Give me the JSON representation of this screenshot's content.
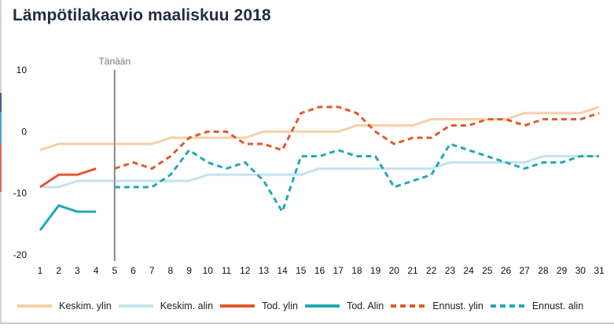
{
  "page": {
    "title": "Lämpötilakaavio maaliskuu 2018",
    "side_strip_colors": [
      "#4a5d85",
      "#4fa3d1",
      "#d9675f"
    ]
  },
  "chart_data": {
    "type": "line",
    "title": "Lämpötilakaavio maaliskuu 2018",
    "xlabel": "",
    "ylabel": "",
    "x": [
      1,
      2,
      3,
      4,
      5,
      6,
      7,
      8,
      9,
      10,
      11,
      12,
      13,
      14,
      15,
      16,
      17,
      18,
      19,
      20,
      21,
      22,
      23,
      24,
      25,
      26,
      27,
      28,
      29,
      30,
      31
    ],
    "x_ticks": [
      "1",
      "2",
      "3",
      "4",
      "5",
      "6",
      "7",
      "8",
      "9",
      "10",
      "11",
      "12",
      "13",
      "14",
      "15",
      "16",
      "17",
      "18",
      "19",
      "20",
      "21",
      "22",
      "23",
      "24",
      "25",
      "26",
      "27",
      "28",
      "29",
      "30",
      "31"
    ],
    "y_ticks": [
      "10",
      "0",
      "-10",
      "-20"
    ],
    "y_tick_values": [
      10,
      0,
      -10,
      -20
    ],
    "ylim": [
      -20,
      10
    ],
    "xlim": [
      1,
      31
    ],
    "grid": false,
    "legend_position": "bottom",
    "annotation": {
      "label": "Tänään",
      "x": 5
    },
    "series": [
      {
        "name": "Keskim. ylin",
        "color": "#f8cfa6",
        "style": "solid",
        "x": [
          1,
          2,
          3,
          4,
          5,
          6,
          7,
          8,
          9,
          10,
          11,
          12,
          13,
          14,
          15,
          16,
          17,
          18,
          19,
          20,
          21,
          22,
          23,
          24,
          25,
          26,
          27,
          28,
          29,
          30,
          31
        ],
        "values": [
          -3,
          -2,
          -2,
          -2,
          -2,
          -2,
          -2,
          -1,
          -1,
          -1,
          -1,
          -1,
          0,
          0,
          0,
          0,
          0,
          1,
          1,
          1,
          1,
          2,
          2,
          2,
          2,
          2,
          3,
          3,
          3,
          3,
          4
        ]
      },
      {
        "name": "Keskim. alin",
        "color": "#c3e3ec",
        "style": "solid",
        "x": [
          1,
          2,
          3,
          4,
          5,
          6,
          7,
          8,
          9,
          10,
          11,
          12,
          13,
          14,
          15,
          16,
          17,
          18,
          19,
          20,
          21,
          22,
          23,
          24,
          25,
          26,
          27,
          28,
          29,
          30,
          31
        ],
        "values": [
          -9,
          -9,
          -8,
          -8,
          -8,
          -8,
          -8,
          -8,
          -8,
          -7,
          -7,
          -7,
          -7,
          -7,
          -7,
          -6,
          -6,
          -6,
          -6,
          -6,
          -6,
          -6,
          -5,
          -5,
          -5,
          -5,
          -5,
          -4,
          -4,
          -4,
          -4
        ]
      },
      {
        "name": "Tod. ylin",
        "color": "#e05a2b",
        "style": "solid",
        "x": [
          1,
          2,
          3,
          4
        ],
        "values": [
          -9,
          -7,
          -7,
          -6
        ]
      },
      {
        "name": "Tod. Alin",
        "color": "#22a8b3",
        "style": "solid",
        "x": [
          1,
          2,
          3,
          4
        ],
        "values": [
          -16,
          -12,
          -13,
          -13
        ]
      },
      {
        "name": "Ennust. ylin",
        "color": "#e05a2b",
        "style": "dashed",
        "x": [
          5,
          6,
          7,
          8,
          9,
          10,
          11,
          12,
          13,
          14,
          15,
          16,
          17,
          18,
          19,
          20,
          21,
          22,
          23,
          24,
          25,
          26,
          27,
          28,
          29,
          30,
          31
        ],
        "values": [
          -6,
          -5,
          -6,
          -4,
          -1,
          0,
          0,
          -2,
          -2,
          -3,
          3,
          4,
          4,
          3,
          0,
          -2,
          -1,
          -1,
          1,
          1,
          2,
          2,
          1,
          2,
          2,
          2,
          3
        ]
      },
      {
        "name": "Ennust. alin",
        "color": "#22a8b3",
        "style": "dashed",
        "x": [
          5,
          6,
          7,
          8,
          9,
          10,
          11,
          12,
          13,
          14,
          15,
          16,
          17,
          18,
          19,
          20,
          21,
          22,
          23,
          24,
          25,
          26,
          27,
          28,
          29,
          30,
          31
        ],
        "values": [
          -9,
          -9,
          -9,
          -7,
          -3,
          -5,
          -6,
          -5,
          -8,
          -13,
          -4,
          -4,
          -3,
          -4,
          -4,
          -9,
          -8,
          -7,
          -2,
          -3,
          -4,
          -5,
          -6,
          -5,
          -5,
          -4,
          -4
        ]
      }
    ]
  }
}
